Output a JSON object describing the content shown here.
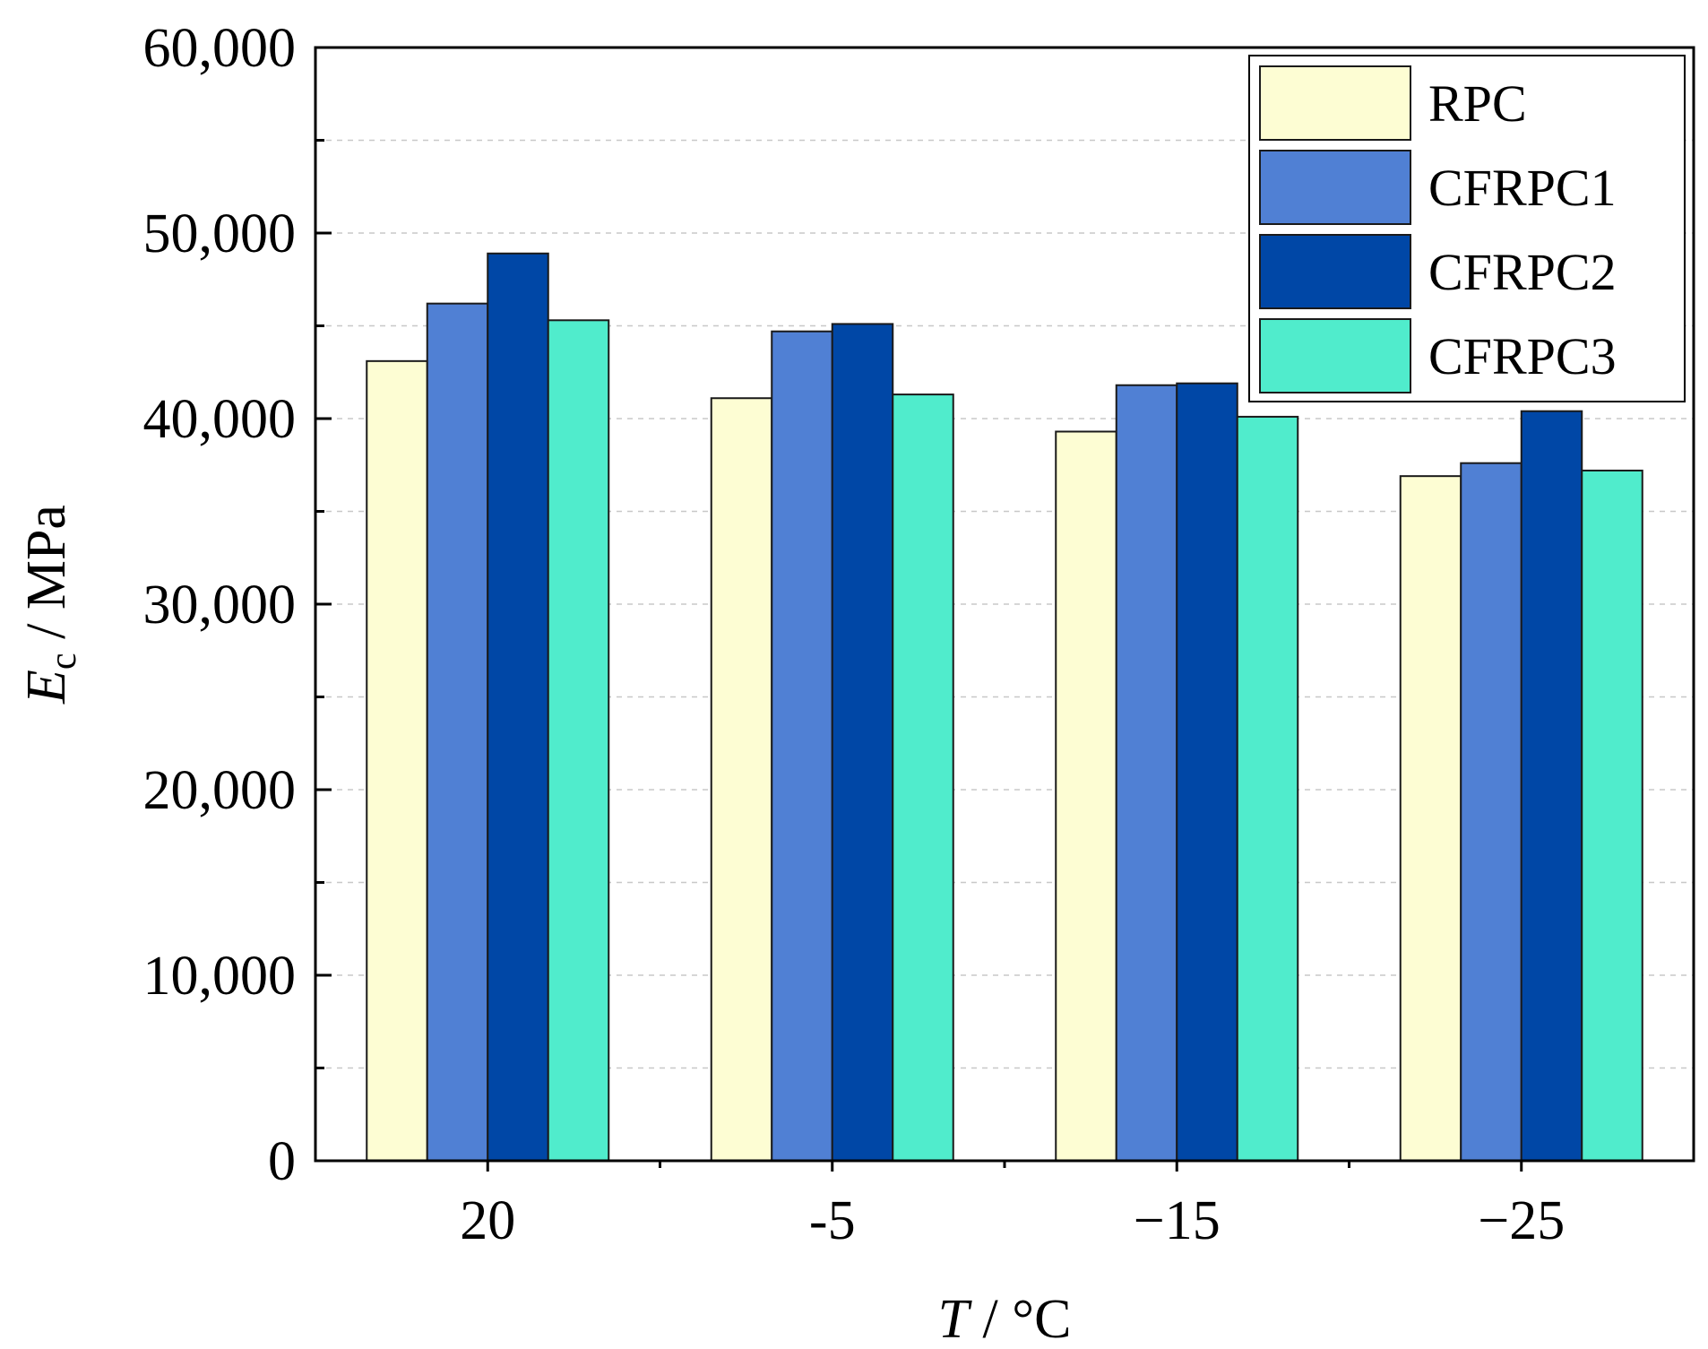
{
  "chart_data": {
    "type": "bar",
    "title": "",
    "xlabel_italic": "T",
    "xlabel_rest": " / °C",
    "ylabel_italic": "E",
    "ylabel_sub": "c",
    "ylabel_rest": " / MPa",
    "categories": [
      "20",
      "-5",
      "−15",
      "−25"
    ],
    "ylim": [
      0,
      60000
    ],
    "yticks": [
      0,
      10000,
      20000,
      30000,
      40000,
      50000,
      60000
    ],
    "ytick_labels": [
      "0",
      "10,000",
      "20,000",
      "30,000",
      "40,000",
      "50,000",
      "60,000"
    ],
    "grid": true,
    "legend_position": "top-right",
    "series": [
      {
        "name": "RPC",
        "color": "#fdfdd3",
        "values": [
          43100,
          41100,
          39300,
          36900
        ]
      },
      {
        "name": "CFRPC1",
        "color": "#5080d4",
        "values": [
          46200,
          44700,
          41800,
          37600
        ]
      },
      {
        "name": "CFRPC2",
        "color": "#0047a6",
        "values": [
          48900,
          45100,
          41900,
          40400
        ]
      },
      {
        "name": "CFRPC3",
        "color": "#50eccc",
        "values": [
          45300,
          41300,
          40100,
          37200
        ]
      }
    ]
  }
}
